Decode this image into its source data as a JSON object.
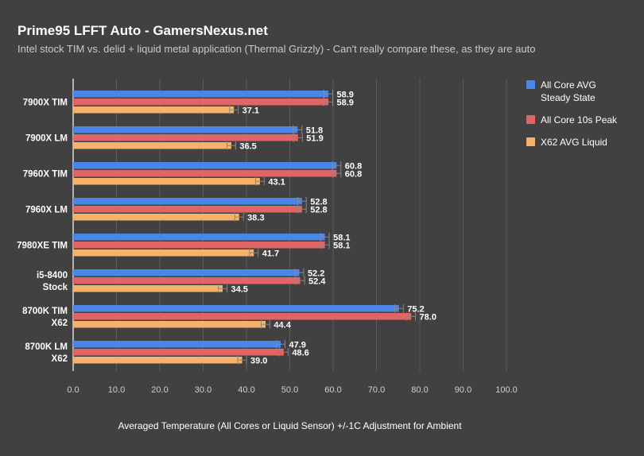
{
  "chart_data": {
    "type": "bar",
    "orientation": "horizontal",
    "title": "Prime95 LFFT Auto - GamersNexus.net",
    "subtitle": "Intel stock TIM vs. delid + liquid metal application (Thermal Grizzly) - Can't really compare these, as they are auto",
    "xlabel": "Averaged Temperature (All Cores or Liquid Sensor) +/-1C Adjustment for Ambient",
    "xlim": [
      0,
      100
    ],
    "x_ticks": [
      "0.0",
      "10.0",
      "20.0",
      "30.0",
      "40.0",
      "50.0",
      "60.0",
      "70.0",
      "80.0",
      "90.0",
      "100.0"
    ],
    "grid": true,
    "legend_position": "right",
    "error_bars": "+/-1",
    "categories": [
      [
        "7900X TIM"
      ],
      [
        "7900X LM"
      ],
      [
        "7960X TIM"
      ],
      [
        "7960X LM"
      ],
      [
        "7980XE TIM"
      ],
      [
        "i5-8400",
        "Stock"
      ],
      [
        "8700K TIM",
        "X62"
      ],
      [
        "8700K LM",
        "X62"
      ]
    ],
    "series": [
      {
        "name": [
          "All Core AVG",
          "Steady State"
        ],
        "color": "#4a86e8",
        "values": [
          58.9,
          51.8,
          60.8,
          52.8,
          58.1,
          52.2,
          75.2,
          47.9
        ],
        "labels": [
          "58.9",
          "51.8",
          "60.8",
          "52.8",
          "58.1",
          "52.2",
          "75.2",
          "47.9"
        ]
      },
      {
        "name": [
          "All Core 10s Peak"
        ],
        "color": "#e06666",
        "values": [
          58.9,
          51.9,
          60.8,
          52.8,
          58.1,
          52.4,
          78.0,
          48.6
        ],
        "labels": [
          "58.9",
          "51.9",
          "60.8",
          "52.8",
          "58.1",
          "52.4",
          "78.0",
          "48.6"
        ]
      },
      {
        "name": [
          "X62 AVG Liquid"
        ],
        "color": "#f6b26b",
        "values": [
          37.1,
          36.5,
          43.1,
          38.3,
          41.7,
          34.5,
          44.4,
          39.0
        ],
        "labels": [
          "37.1",
          "36.5",
          "43.1",
          "38.3",
          "41.7",
          "34.5",
          "44.4",
          "39.0"
        ]
      }
    ]
  }
}
